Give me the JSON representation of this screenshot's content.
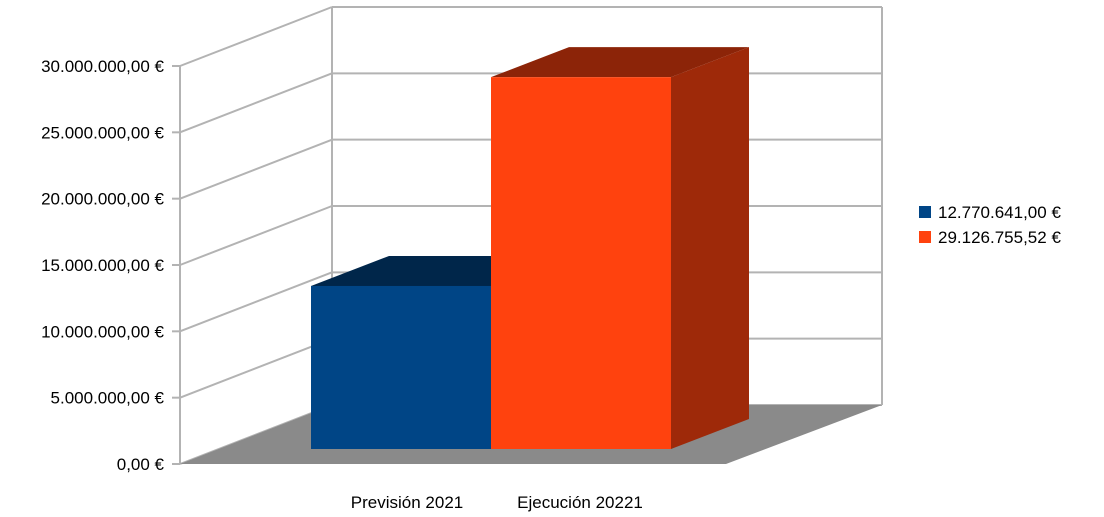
{
  "chart_data": {
    "type": "bar",
    "categories": [
      "Previsión 2021",
      "Ejecución 20221"
    ],
    "values": [
      12770641.0,
      29126755.52
    ],
    "ylim": [
      0,
      30000000
    ],
    "yticks": [
      0,
      5000000,
      10000000,
      15000000,
      20000000,
      25000000,
      30000000
    ],
    "ytick_labels": [
      "0,00 €",
      "5.000.000,00 €",
      "10.000.000,00 €",
      "15.000.000,00 €",
      "20.000.000,00 €",
      "25.000.000,00 €",
      "30.000.000,00 €"
    ],
    "legend": {
      "position": "right",
      "entries": [
        "12.770.641,00 €",
        "29.126.755,52 €"
      ]
    },
    "colors": [
      "#004586",
      "#ff420e"
    ],
    "grid": true,
    "style": "3d"
  }
}
